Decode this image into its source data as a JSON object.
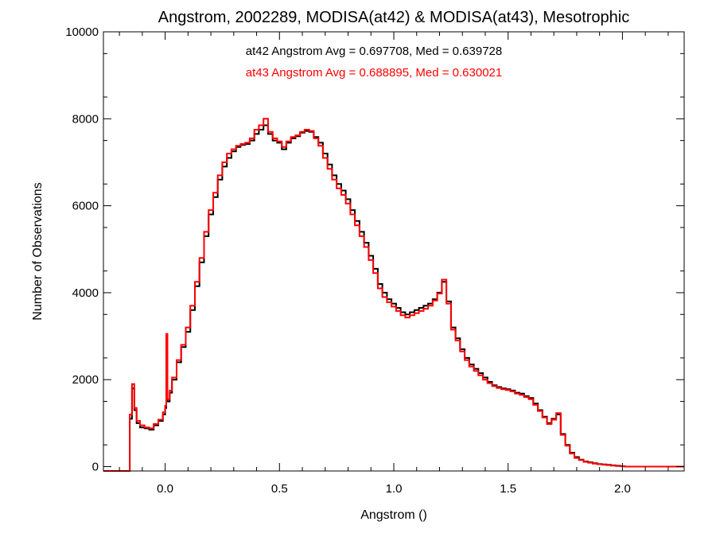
{
  "chart_data": {
    "type": "line",
    "step": true,
    "title": "Angstrom, 2002289, MODISA(at42) & MODISA(at43), Mesotrophic",
    "xlabel": "Angstrom ()",
    "ylabel": "Number of Observations",
    "xlim": [
      -0.27,
      2.27
    ],
    "ylim": [
      -100,
      10000
    ],
    "x_ticks": [
      0.0,
      0.5,
      1.0,
      1.5,
      2.0
    ],
    "x_tick_labels": [
      "0.0",
      "0.5",
      "1.0",
      "1.5",
      "2.0"
    ],
    "y_ticks": [
      0,
      2000,
      4000,
      6000,
      8000,
      10000
    ],
    "y_tick_labels": [
      "0",
      "2000",
      "4000",
      "6000",
      "8000",
      "10000"
    ],
    "grid": false,
    "annotations": [
      {
        "text": "at42 Angstrom Avg = 0.697708, Med = 0.639728",
        "color": "#000000"
      },
      {
        "text": "at43 Angstrom Avg = 0.688895, Med = 0.630021",
        "color": "#ff0000"
      }
    ],
    "series": [
      {
        "color": "#000000",
        "points": [
          [
            -0.27,
            -100
          ],
          [
            -0.16,
            -100
          ],
          [
            -0.155,
            1100
          ],
          [
            -0.145,
            1800
          ],
          [
            -0.135,
            1300
          ],
          [
            -0.125,
            1000
          ],
          [
            -0.11,
            900
          ],
          [
            -0.09,
            880
          ],
          [
            -0.07,
            850
          ],
          [
            -0.05,
            950
          ],
          [
            -0.03,
            1050
          ],
          [
            -0.01,
            1200
          ],
          [
            0.0,
            1350
          ],
          [
            0.005,
            2900
          ],
          [
            0.01,
            1500
          ],
          [
            0.02,
            1700
          ],
          [
            0.03,
            2000
          ],
          [
            0.05,
            2400
          ],
          [
            0.07,
            2750
          ],
          [
            0.09,
            3100
          ],
          [
            0.11,
            3600
          ],
          [
            0.13,
            4150
          ],
          [
            0.15,
            4700
          ],
          [
            0.17,
            5300
          ],
          [
            0.19,
            5800
          ],
          [
            0.21,
            6200
          ],
          [
            0.23,
            6600
          ],
          [
            0.25,
            6900
          ],
          [
            0.27,
            7100
          ],
          [
            0.29,
            7250
          ],
          [
            0.31,
            7350
          ],
          [
            0.33,
            7400
          ],
          [
            0.35,
            7420
          ],
          [
            0.37,
            7500
          ],
          [
            0.39,
            7650
          ],
          [
            0.41,
            7750
          ],
          [
            0.43,
            7850
          ],
          [
            0.45,
            7650
          ],
          [
            0.47,
            7500
          ],
          [
            0.49,
            7450
          ],
          [
            0.51,
            7300
          ],
          [
            0.53,
            7450
          ],
          [
            0.55,
            7550
          ],
          [
            0.57,
            7600
          ],
          [
            0.59,
            7680
          ],
          [
            0.61,
            7720
          ],
          [
            0.63,
            7700
          ],
          [
            0.65,
            7580
          ],
          [
            0.67,
            7450
          ],
          [
            0.69,
            7200
          ],
          [
            0.71,
            6950
          ],
          [
            0.73,
            6700
          ],
          [
            0.75,
            6500
          ],
          [
            0.77,
            6350
          ],
          [
            0.79,
            6150
          ],
          [
            0.81,
            5900
          ],
          [
            0.83,
            5650
          ],
          [
            0.85,
            5400
          ],
          [
            0.87,
            5150
          ],
          [
            0.89,
            4850
          ],
          [
            0.91,
            4550
          ],
          [
            0.93,
            4200
          ],
          [
            0.95,
            4000
          ],
          [
            0.97,
            3850
          ],
          [
            0.99,
            3750
          ],
          [
            1.01,
            3650
          ],
          [
            1.03,
            3550
          ],
          [
            1.05,
            3500
          ],
          [
            1.07,
            3550
          ],
          [
            1.09,
            3600
          ],
          [
            1.11,
            3650
          ],
          [
            1.13,
            3700
          ],
          [
            1.15,
            3750
          ],
          [
            1.17,
            3850
          ],
          [
            1.19,
            4000
          ],
          [
            1.21,
            4250
          ],
          [
            1.23,
            3800
          ],
          [
            1.25,
            3200
          ],
          [
            1.27,
            2950
          ],
          [
            1.29,
            2700
          ],
          [
            1.31,
            2500
          ],
          [
            1.33,
            2350
          ],
          [
            1.35,
            2250
          ],
          [
            1.37,
            2150
          ],
          [
            1.39,
            2050
          ],
          [
            1.41,
            1950
          ],
          [
            1.43,
            1870
          ],
          [
            1.45,
            1830
          ],
          [
            1.47,
            1800
          ],
          [
            1.49,
            1780
          ],
          [
            1.51,
            1750
          ],
          [
            1.53,
            1700
          ],
          [
            1.55,
            1680
          ],
          [
            1.57,
            1620
          ],
          [
            1.59,
            1580
          ],
          [
            1.61,
            1450
          ],
          [
            1.63,
            1300
          ],
          [
            1.65,
            1150
          ],
          [
            1.67,
            1000
          ],
          [
            1.69,
            1100
          ],
          [
            1.71,
            1200
          ],
          [
            1.73,
            750
          ],
          [
            1.75,
            500
          ],
          [
            1.77,
            320
          ],
          [
            1.79,
            220
          ],
          [
            1.81,
            160
          ],
          [
            1.83,
            120
          ],
          [
            1.85,
            100
          ],
          [
            1.87,
            80
          ],
          [
            1.89,
            60
          ],
          [
            1.91,
            50
          ],
          [
            1.93,
            40
          ],
          [
            1.95,
            30
          ],
          [
            1.97,
            20
          ],
          [
            1.99,
            10
          ],
          [
            2.01,
            0
          ],
          [
            2.27,
            0
          ]
        ]
      },
      {
        "color": "#ff0000",
        "points": [
          [
            -0.27,
            -100
          ],
          [
            -0.16,
            -100
          ],
          [
            -0.155,
            1200
          ],
          [
            -0.145,
            1900
          ],
          [
            -0.135,
            1350
          ],
          [
            -0.125,
            1050
          ],
          [
            -0.11,
            950
          ],
          [
            -0.09,
            900
          ],
          [
            -0.07,
            880
          ],
          [
            -0.05,
            980
          ],
          [
            -0.03,
            1080
          ],
          [
            -0.01,
            1250
          ],
          [
            0.0,
            1400
          ],
          [
            0.005,
            3050
          ],
          [
            0.01,
            1550
          ],
          [
            0.02,
            1750
          ],
          [
            0.03,
            2050
          ],
          [
            0.05,
            2450
          ],
          [
            0.07,
            2800
          ],
          [
            0.09,
            3200
          ],
          [
            0.11,
            3700
          ],
          [
            0.13,
            4250
          ],
          [
            0.15,
            4800
          ],
          [
            0.17,
            5400
          ],
          [
            0.19,
            5900
          ],
          [
            0.21,
            6300
          ],
          [
            0.23,
            6700
          ],
          [
            0.25,
            7000
          ],
          [
            0.27,
            7200
          ],
          [
            0.29,
            7300
          ],
          [
            0.31,
            7380
          ],
          [
            0.33,
            7420
          ],
          [
            0.35,
            7450
          ],
          [
            0.37,
            7550
          ],
          [
            0.39,
            7750
          ],
          [
            0.41,
            7850
          ],
          [
            0.43,
            8000
          ],
          [
            0.45,
            7700
          ],
          [
            0.47,
            7550
          ],
          [
            0.49,
            7480
          ],
          [
            0.51,
            7350
          ],
          [
            0.53,
            7480
          ],
          [
            0.55,
            7580
          ],
          [
            0.57,
            7620
          ],
          [
            0.59,
            7700
          ],
          [
            0.61,
            7750
          ],
          [
            0.63,
            7720
          ],
          [
            0.65,
            7550
          ],
          [
            0.67,
            7380
          ],
          [
            0.69,
            7100
          ],
          [
            0.71,
            6850
          ],
          [
            0.73,
            6600
          ],
          [
            0.75,
            6400
          ],
          [
            0.77,
            6250
          ],
          [
            0.79,
            6050
          ],
          [
            0.81,
            5800
          ],
          [
            0.83,
            5550
          ],
          [
            0.85,
            5300
          ],
          [
            0.87,
            5050
          ],
          [
            0.89,
            4750
          ],
          [
            0.91,
            4450
          ],
          [
            0.93,
            4100
          ],
          [
            0.95,
            3900
          ],
          [
            0.97,
            3780
          ],
          [
            0.99,
            3680
          ],
          [
            1.01,
            3580
          ],
          [
            1.03,
            3480
          ],
          [
            1.05,
            3430
          ],
          [
            1.07,
            3480
          ],
          [
            1.09,
            3530
          ],
          [
            1.11,
            3580
          ],
          [
            1.13,
            3630
          ],
          [
            1.15,
            3700
          ],
          [
            1.17,
            3820
          ],
          [
            1.19,
            3980
          ],
          [
            1.21,
            4300
          ],
          [
            1.23,
            3750
          ],
          [
            1.25,
            3150
          ],
          [
            1.27,
            2900
          ],
          [
            1.29,
            2650
          ],
          [
            1.31,
            2450
          ],
          [
            1.33,
            2300
          ],
          [
            1.35,
            2200
          ],
          [
            1.37,
            2100
          ],
          [
            1.39,
            2000
          ],
          [
            1.41,
            1920
          ],
          [
            1.43,
            1850
          ],
          [
            1.45,
            1810
          ],
          [
            1.47,
            1780
          ],
          [
            1.49,
            1760
          ],
          [
            1.51,
            1730
          ],
          [
            1.53,
            1680
          ],
          [
            1.55,
            1650
          ],
          [
            1.57,
            1600
          ],
          [
            1.59,
            1550
          ],
          [
            1.61,
            1420
          ],
          [
            1.63,
            1280
          ],
          [
            1.65,
            1130
          ],
          [
            1.67,
            980
          ],
          [
            1.69,
            1080
          ],
          [
            1.71,
            1230
          ],
          [
            1.73,
            730
          ],
          [
            1.75,
            480
          ],
          [
            1.77,
            300
          ],
          [
            1.79,
            200
          ],
          [
            1.81,
            150
          ],
          [
            1.83,
            110
          ],
          [
            1.85,
            90
          ],
          [
            1.87,
            70
          ],
          [
            1.89,
            55
          ],
          [
            1.91,
            45
          ],
          [
            1.93,
            35
          ],
          [
            1.95,
            25
          ],
          [
            1.97,
            15
          ],
          [
            1.99,
            8
          ],
          [
            2.01,
            0
          ],
          [
            2.27,
            0
          ]
        ]
      }
    ]
  }
}
